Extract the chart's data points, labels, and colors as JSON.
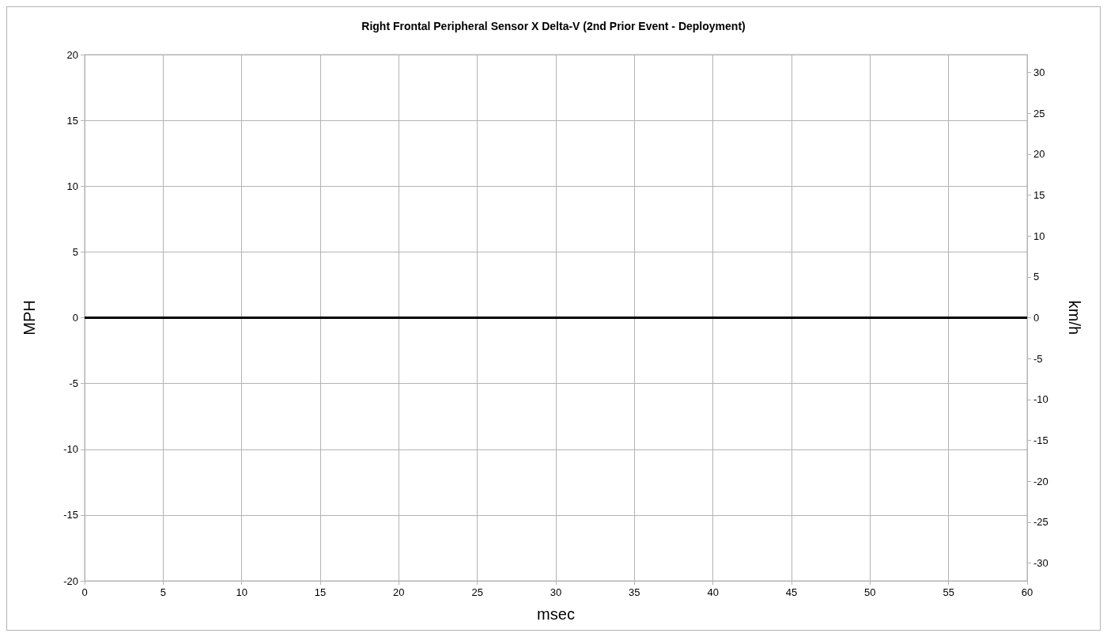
{
  "chart_data": {
    "type": "line",
    "title": "Right Frontal Peripheral Sensor X Delta-V (2nd Prior Event - Deployment)",
    "xlabel": "msec",
    "ylabel": "MPH",
    "y2label": "km/h",
    "x": [
      0,
      60
    ],
    "series": [
      {
        "color": "#000000",
        "values": [
          0,
          0
        ]
      }
    ],
    "xlim": [
      0,
      60
    ],
    "xticks": [
      0,
      5,
      10,
      15,
      20,
      25,
      30,
      35,
      40,
      45,
      50,
      55,
      60
    ],
    "ylim": [
      -20,
      20
    ],
    "yticks": [
      -20,
      -15,
      -10,
      -5,
      0,
      5,
      10,
      15,
      20
    ],
    "y2lim": [
      -32.187,
      32.187
    ],
    "y2ticks": [
      -30,
      -25,
      -20,
      -15,
      -10,
      -5,
      0,
      5,
      10,
      15,
      20,
      25,
      30
    ],
    "grid": true,
    "marker": "none",
    "line_style": "solid"
  }
}
